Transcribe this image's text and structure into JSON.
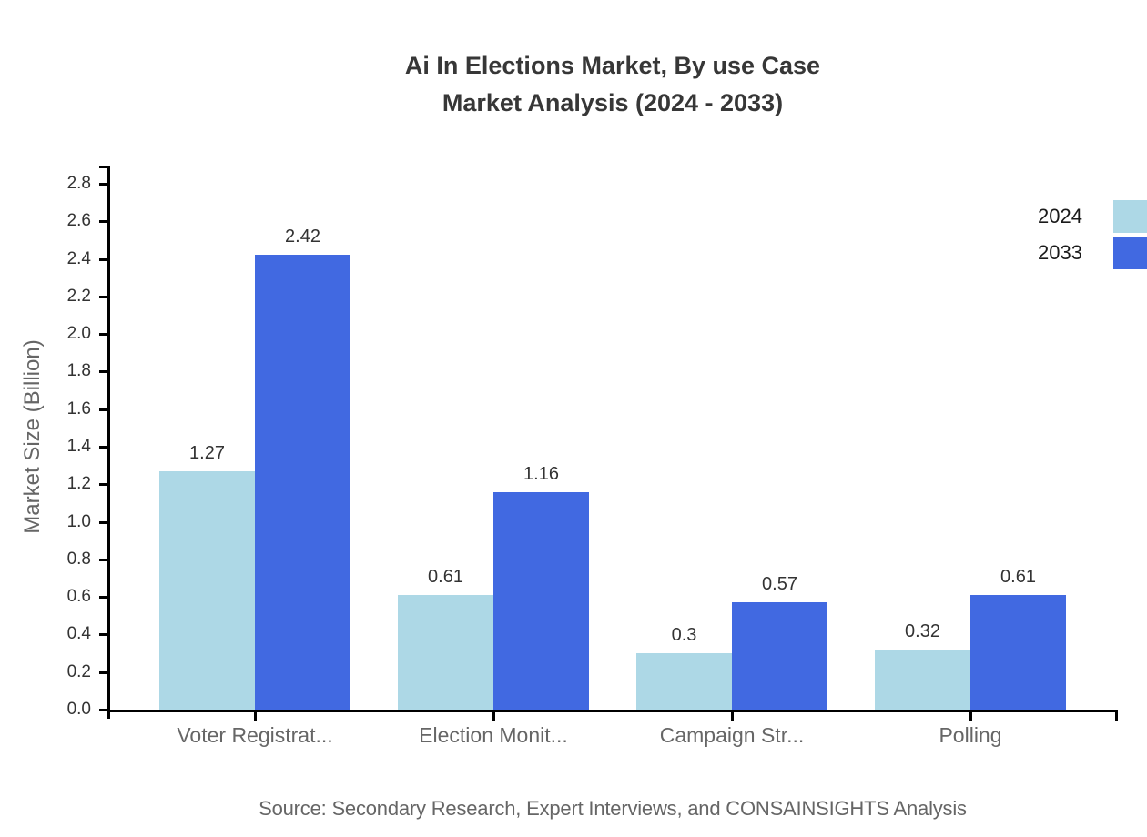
{
  "title": {
    "line1": "Ai In Elections Market, By use Case",
    "line2": "Market Analysis (2024 - 2033)"
  },
  "chart_data": {
    "type": "bar",
    "title": "Ai In Elections Market, By use Case Market Analysis (2024 - 2033)",
    "categories": [
      "Voter Registrat...",
      "Election Monit...",
      "Campaign Str...",
      "Polling"
    ],
    "series": [
      {
        "name": "2024",
        "color": "#add8e6",
        "values": [
          1.27,
          0.61,
          0.3,
          0.32
        ]
      },
      {
        "name": "2033",
        "color": "#4169e1",
        "values": [
          2.42,
          1.16,
          0.57,
          0.61
        ]
      }
    ],
    "ylabel": "Market Size (Billion)",
    "ylim": [
      0,
      2.9
    ],
    "ytick_step": 0.2,
    "ytick_max": 2.8,
    "grid": false,
    "legend_position": "top-right",
    "bar_value_labels": true
  },
  "footer": {
    "source": "Source: Secondary Research, Expert Interviews, and CONSAINSIGHTS Analysis"
  },
  "colors": {
    "axis": "#000000",
    "tick_label": "#333333",
    "category_label": "#666666",
    "value_label": "#333333",
    "title": "#373737",
    "source": "#666666",
    "series_2024": "#add8e6",
    "series_2033": "#4169e1"
  }
}
